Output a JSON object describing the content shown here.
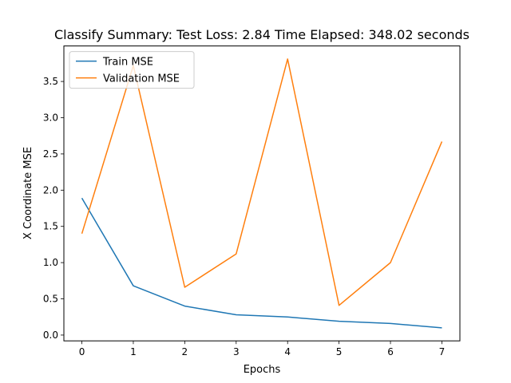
{
  "chart_data": {
    "type": "line",
    "title": "Classify Summary: Test Loss: 2.84 Time Elapsed: 348.02 seconds",
    "xlabel": "Epochs",
    "ylabel": "X Coordinate MSE",
    "x": [
      0,
      1,
      2,
      3,
      4,
      5,
      6,
      7
    ],
    "xlim": [
      -0.35,
      7.35
    ],
    "ylim": [
      -0.08,
      3.99
    ],
    "xticks": [
      0,
      1,
      2,
      3,
      4,
      5,
      6,
      7
    ],
    "yticks": [
      0.0,
      0.5,
      1.0,
      1.5,
      2.0,
      2.5,
      3.0,
      3.5
    ],
    "yticklabels": [
      "0.0",
      "0.5",
      "1.0",
      "1.5",
      "2.0",
      "2.5",
      "3.0",
      "3.5"
    ],
    "grid": false,
    "legend_position": "top-left",
    "series": [
      {
        "name": "Train MSE",
        "color": "#1f77b4",
        "values": [
          1.89,
          0.68,
          0.4,
          0.28,
          0.25,
          0.19,
          0.16,
          0.1
        ]
      },
      {
        "name": "Validation MSE",
        "color": "#ff7f0e",
        "values": [
          1.4,
          3.72,
          0.66,
          1.12,
          3.81,
          0.41,
          1.0,
          2.67
        ]
      }
    ]
  }
}
